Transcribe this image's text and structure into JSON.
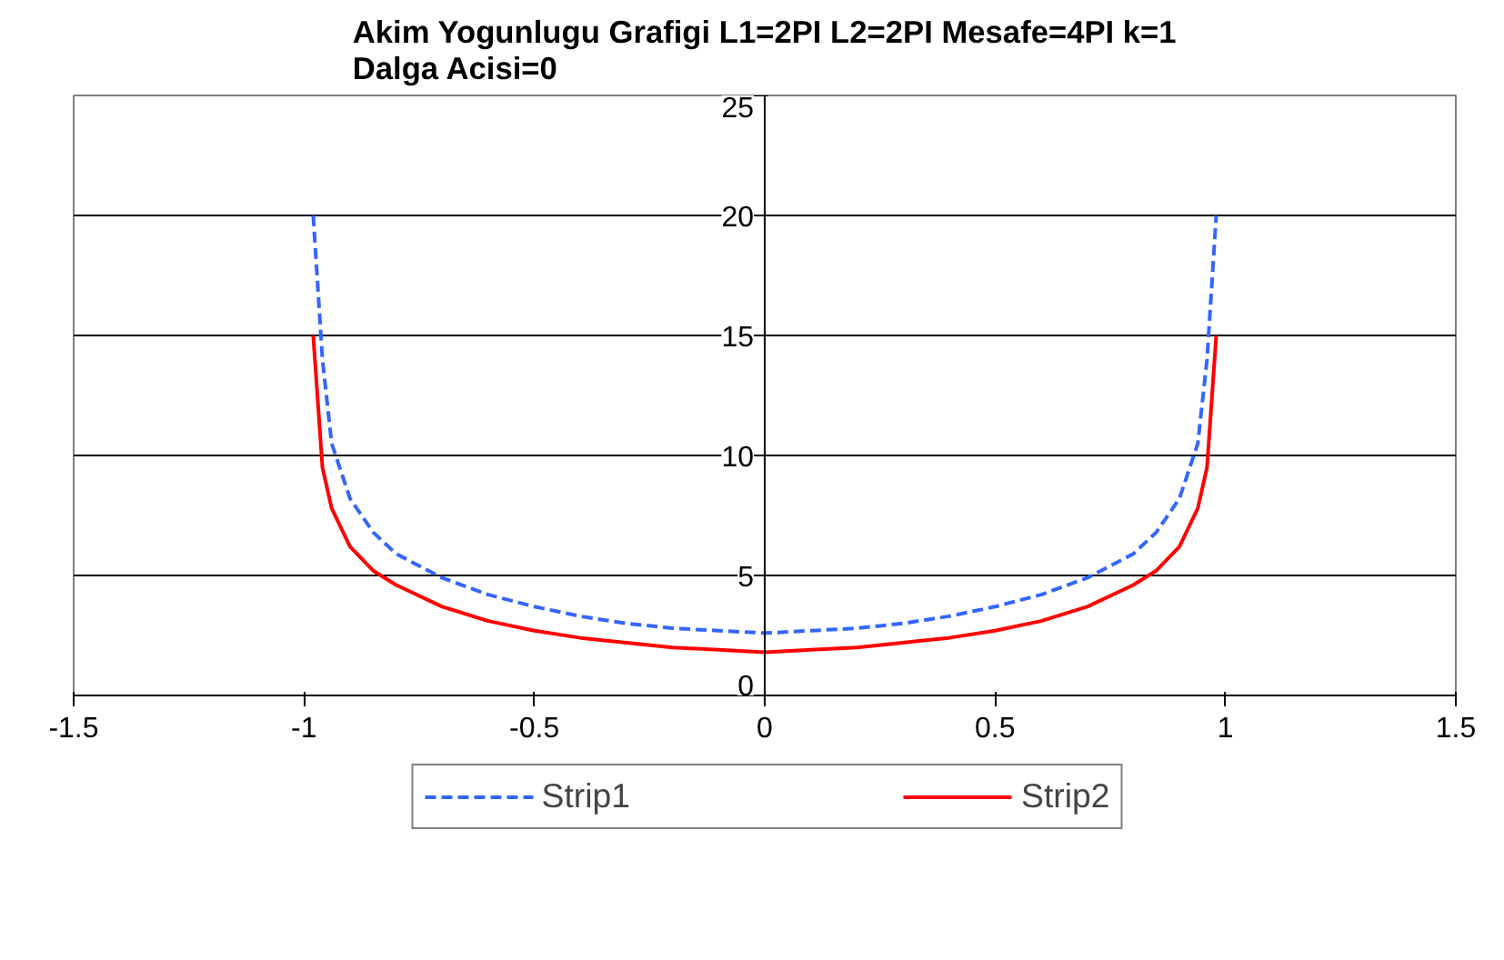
{
  "chart_data": {
    "type": "line",
    "title": "Akim Yogunlugu Grafigi L1=2PI L2=2PI Mesafe=4PI k=1 Dalga Acisi=0",
    "xlim": [
      -1.5,
      1.5
    ],
    "xticks": [
      -1.5,
      -1,
      -0.5,
      0,
      0.5,
      1,
      1.5
    ],
    "ylim": [
      0,
      25
    ],
    "yticks": [
      0,
      5,
      10,
      15,
      20,
      25
    ],
    "grid": "y",
    "legend": "bottom",
    "series": [
      {
        "name": "Strip1",
        "color": "#3366ff",
        "line_style": "dashed",
        "x": [
          -0.98,
          -0.96,
          -0.94,
          -0.9,
          -0.85,
          -0.8,
          -0.7,
          -0.6,
          -0.5,
          -0.4,
          -0.3,
          -0.2,
          -0.1,
          0,
          0.1,
          0.2,
          0.3,
          0.4,
          0.5,
          0.6,
          0.7,
          0.8,
          0.85,
          0.9,
          0.94,
          0.96,
          0.98
        ],
        "values": [
          20,
          14,
          10.5,
          8.2,
          6.8,
          5.9,
          4.9,
          4.2,
          3.7,
          3.3,
          3.0,
          2.8,
          2.7,
          2.6,
          2.7,
          2.8,
          3.0,
          3.3,
          3.7,
          4.2,
          4.9,
          5.9,
          6.8,
          8.2,
          10.5,
          14,
          20
        ]
      },
      {
        "name": "Strip2",
        "color": "#ff0000",
        "line_style": "solid",
        "x": [
          -0.98,
          -0.96,
          -0.94,
          -0.9,
          -0.85,
          -0.8,
          -0.7,
          -0.6,
          -0.5,
          -0.4,
          -0.3,
          -0.2,
          -0.1,
          0,
          0.1,
          0.2,
          0.3,
          0.4,
          0.5,
          0.6,
          0.7,
          0.8,
          0.85,
          0.9,
          0.94,
          0.96,
          0.98
        ],
        "values": [
          15,
          9.5,
          7.8,
          6.2,
          5.2,
          4.6,
          3.7,
          3.1,
          2.7,
          2.4,
          2.2,
          2.0,
          1.9,
          1.8,
          1.9,
          2.0,
          2.2,
          2.4,
          2.7,
          3.1,
          3.7,
          4.6,
          5.2,
          6.2,
          7.8,
          9.5,
          15
        ]
      }
    ]
  }
}
